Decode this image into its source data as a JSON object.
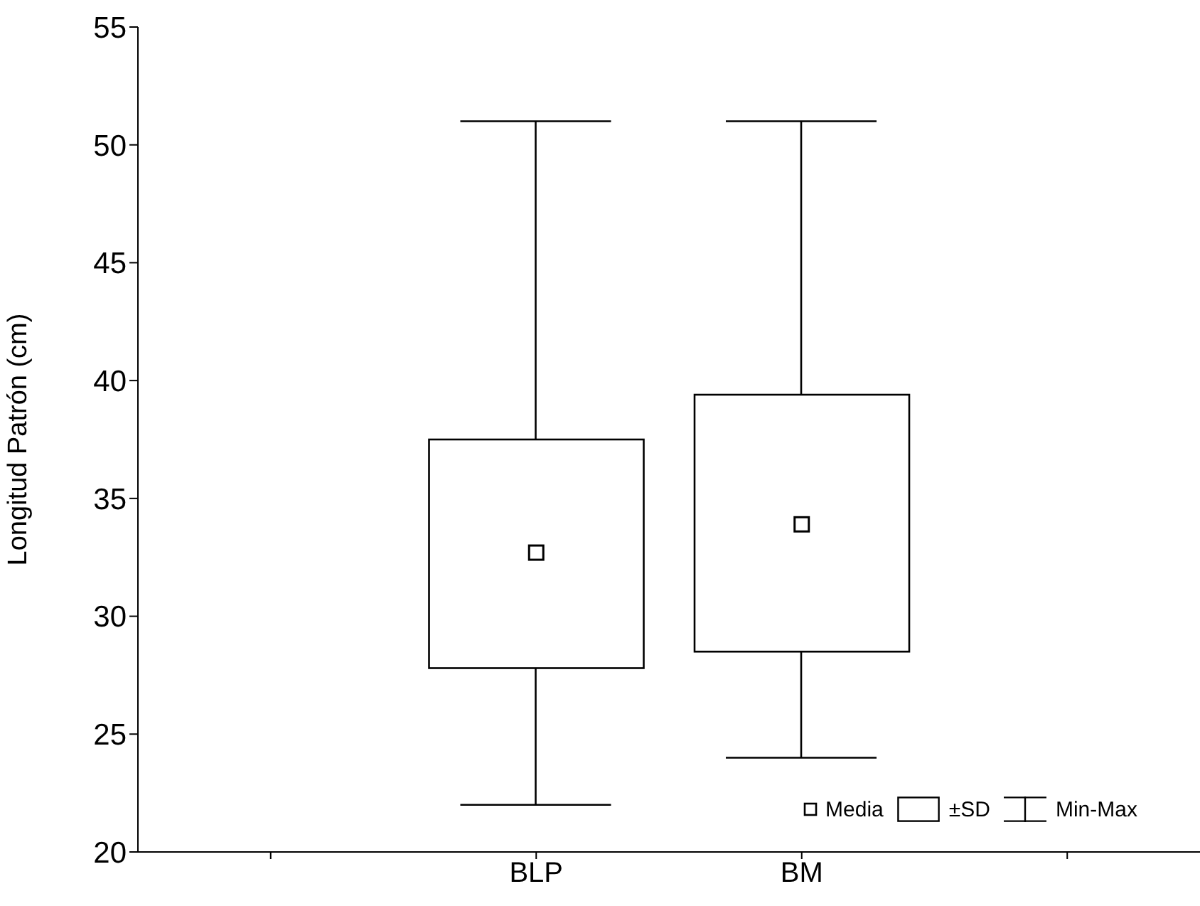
{
  "chart_data": {
    "type": "box",
    "ylabel": "Longitud Patrón (cm)",
    "categories": [
      null,
      "BLP",
      "BM",
      null
    ],
    "boxes": [
      null,
      {
        "low": 22,
        "q1": 27.8,
        "q3": 37.5,
        "high": 51,
        "mean": 32.7
      },
      {
        "low": 24,
        "q1": 28.5,
        "q3": 39.4,
        "high": 51,
        "mean": 33.9
      },
      null
    ],
    "ylim": [
      20,
      55
    ],
    "yticks": [
      20,
      25,
      30,
      35,
      40,
      45,
      50,
      55
    ],
    "annotations": [
      "Media",
      "±SD",
      "Min-Max"
    ]
  }
}
